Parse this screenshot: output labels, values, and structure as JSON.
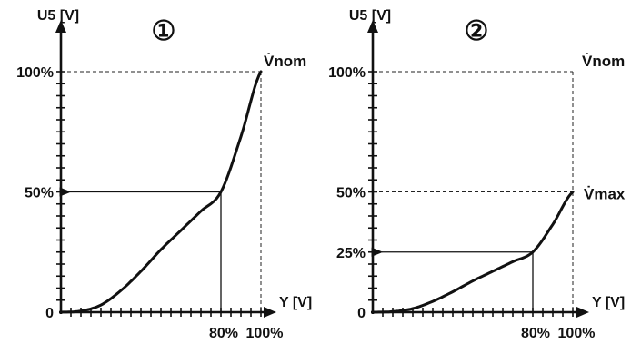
{
  "chart_data": [
    {
      "type": "line",
      "marker": "①",
      "ylabel": "U5 [V]",
      "xlabel": "Y [V]",
      "xlim": [
        0,
        100
      ],
      "ylim": [
        0,
        100
      ],
      "y_ticks": [
        {
          "label": "100%",
          "value": 100
        },
        {
          "label": "50%",
          "value": 50
        },
        {
          "label": "0",
          "value": 0
        }
      ],
      "x_ticks": [
        {
          "label": "80%",
          "value": 80
        },
        {
          "label": "100%",
          "value": 100
        }
      ],
      "curve_end_label": "V̇nom",
      "curve_max": 100,
      "guide_point": {
        "x": 80,
        "y": 50
      },
      "series": [
        {
          "x": [
            0,
            10,
            20,
            30,
            40,
            50,
            60,
            70,
            80,
            90,
            100
          ],
          "y": [
            0,
            0.5,
            3,
            9,
            17,
            26,
            34,
            42,
            50,
            73,
            100
          ]
        }
      ]
    },
    {
      "type": "line",
      "marker": "②",
      "ylabel": "U5 [V]",
      "xlabel": "Y [V]",
      "xlim": [
        0,
        100
      ],
      "ylim": [
        0,
        100
      ],
      "y_ticks": [
        {
          "label": "100%",
          "value": 100
        },
        {
          "label": "50%",
          "value": 50
        },
        {
          "label": "25%",
          "value": 25
        },
        {
          "label": "0",
          "value": 0
        }
      ],
      "x_ticks": [
        {
          "label": "80%",
          "value": 80
        },
        {
          "label": "100%",
          "value": 100
        }
      ],
      "curve_end_label": "V̇max",
      "top_label": "V̇nom",
      "curve_max": 50,
      "guide_point": {
        "x": 80,
        "y": 25
      },
      "series": [
        {
          "x": [
            0,
            10,
            20,
            30,
            40,
            50,
            60,
            70,
            80,
            90,
            100
          ],
          "y": [
            0,
            0.25,
            1.5,
            4.5,
            8.5,
            13,
            17,
            21,
            25,
            36.5,
            50
          ]
        }
      ]
    }
  ]
}
